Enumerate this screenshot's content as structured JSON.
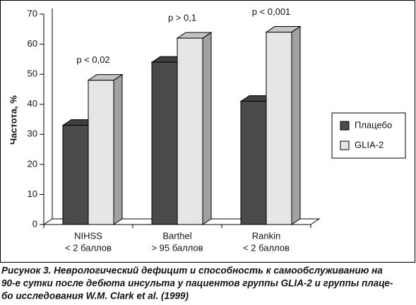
{
  "chart_data": {
    "type": "bar3d",
    "ylabel": "Частота, %",
    "categories": [
      [
        "NIHSS",
        "< 2 баллов"
      ],
      [
        "Barthel",
        "> 95 баллов"
      ],
      [
        "Rankin",
        "< 2 баллов"
      ]
    ],
    "annotations": [
      "p < 0,02",
      "p > 0,1",
      "p < 0,001"
    ],
    "series": [
      {
        "name": "Плацебо",
        "color": "#4a4a4a",
        "values": [
          33,
          54,
          41
        ]
      },
      {
        "name": "GLIA-2",
        "color": "#e6e6e6",
        "values": [
          48,
          62,
          64
        ]
      }
    ],
    "ylim": [
      0,
      70
    ],
    "yticks": [
      0,
      10,
      20,
      30,
      40,
      50,
      60,
      70
    ],
    "legend": "right"
  },
  "caption": [
    "Рисунок 3. Неврологический дефицит и способность к самообслуживанию на",
    "90-е сутки после дебюта инсульта у пациентов группы GLIA-2 и группы плаце-",
    "бо исследования W.M. Clark et al. (1999)"
  ]
}
